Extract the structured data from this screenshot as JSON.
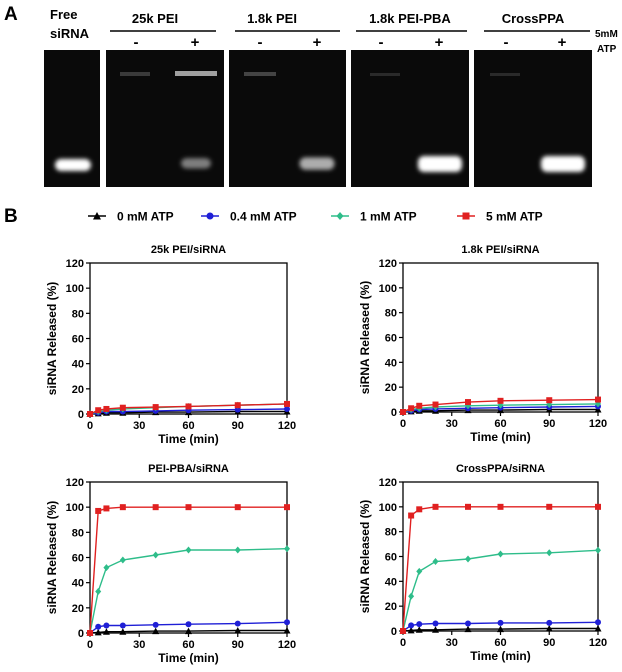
{
  "panel_a": {
    "letter": "A",
    "free_label_line1": "Free",
    "free_label_line2": "siRNA",
    "groups": [
      {
        "name": "25k PEI",
        "minus": "-",
        "plus": "+",
        "minus_band": 0.0,
        "plus_band": 0.3
      },
      {
        "name": "1.8k PEI",
        "minus": "-",
        "plus": "+",
        "minus_band": 0.0,
        "plus_band": 0.55
      },
      {
        "name": "1.8k PEI-PBA",
        "minus": "-",
        "plus": "+",
        "minus_band": 0.0,
        "plus_band": 1.0
      },
      {
        "name": "CrossPPA",
        "minus": "-",
        "plus": "+",
        "minus_band": 0.0,
        "plus_band": 1.0
      }
    ],
    "atp_label_line1": "5mM",
    "atp_label_line2": "ATP",
    "colors": {
      "gel": "#0a0a0a",
      "band": "#ffffff"
    }
  },
  "panel_b": {
    "letter": "B",
    "legend": [
      {
        "label": "0 mM ATP",
        "color": "#000000",
        "marker": "triangle"
      },
      {
        "label": "0.4 mM ATP",
        "color": "#1f1fd6",
        "marker": "circle"
      },
      {
        "label": "1 mM ATP",
        "color": "#2ebd8a",
        "marker": "diamond"
      },
      {
        "label": "5 mM ATP",
        "color": "#e02020",
        "marker": "square"
      }
    ]
  },
  "chart_data": [
    {
      "type": "line",
      "title": "25k PEI/siRNA",
      "xlabel": "Time (min)",
      "ylabel": "siRNA Released (%)",
      "xlim": [
        0,
        120
      ],
      "ylim": [
        0,
        120
      ],
      "xticks": [
        0,
        30,
        60,
        90,
        120
      ],
      "yticks": [
        0,
        20,
        40,
        60,
        80,
        100,
        120
      ],
      "x": [
        0,
        5,
        10,
        20,
        40,
        60,
        90,
        120
      ],
      "series": [
        {
          "name": "0 mM ATP",
          "values": [
            0,
            0.5,
            1,
            1,
            1.5,
            1.5,
            2,
            2
          ]
        },
        {
          "name": "0.4 mM ATP",
          "values": [
            0,
            1,
            2,
            2,
            2.5,
            3,
            3.5,
            4
          ]
        },
        {
          "name": "1 mM ATP",
          "values": [
            0,
            2,
            3,
            4,
            5,
            6,
            7,
            8
          ]
        },
        {
          "name": "5 mM ATP",
          "values": [
            0,
            3,
            4,
            5,
            5.5,
            6,
            7,
            8
          ]
        }
      ]
    },
    {
      "type": "line",
      "title": "1.8k PEI/siRNA",
      "xlabel": "Time (min)",
      "ylabel": "siRNA Released (%)",
      "xlim": [
        0,
        120
      ],
      "ylim": [
        0,
        120
      ],
      "xticks": [
        0,
        30,
        60,
        90,
        120
      ],
      "yticks": [
        0,
        20,
        40,
        60,
        80,
        100,
        120
      ],
      "x": [
        0,
        5,
        10,
        20,
        40,
        60,
        90,
        120
      ],
      "series": [
        {
          "name": "0 mM ATP",
          "values": [
            0,
            0.5,
            1,
            1,
            1.5,
            1.5,
            2,
            2
          ]
        },
        {
          "name": "0.4 mM ATP",
          "values": [
            0,
            1,
            2,
            2.5,
            3,
            3.5,
            4,
            4.5
          ]
        },
        {
          "name": "1 mM ATP",
          "values": [
            0,
            2,
            3,
            4,
            5,
            5.5,
            6,
            6.5
          ]
        },
        {
          "name": "5 mM ATP",
          "values": [
            0,
            3,
            5,
            6,
            8,
            9,
            9.5,
            10
          ]
        }
      ]
    },
    {
      "type": "line",
      "title": "PEI-PBA/siRNA",
      "xlabel": "Time (min)",
      "ylabel": "siRNA Released (%)",
      "xlim": [
        0,
        120
      ],
      "ylim": [
        0,
        120
      ],
      "xticks": [
        0,
        30,
        60,
        90,
        120
      ],
      "yticks": [
        0,
        20,
        40,
        60,
        80,
        100,
        120
      ],
      "x": [
        0,
        5,
        10,
        20,
        40,
        60,
        90,
        120
      ],
      "series": [
        {
          "name": "0 mM ATP",
          "values": [
            0,
            0.5,
            1,
            1,
            1.5,
            1.5,
            2,
            2
          ]
        },
        {
          "name": "0.4 mM ATP",
          "values": [
            0,
            5,
            6,
            6,
            6.5,
            7,
            7.5,
            8.5
          ]
        },
        {
          "name": "1 mM ATP",
          "values": [
            0,
            33,
            52,
            58,
            62,
            66,
            66,
            67
          ]
        },
        {
          "name": "5 mM ATP",
          "values": [
            0,
            97,
            99,
            100,
            100,
            100,
            100,
            100
          ]
        }
      ]
    },
    {
      "type": "line",
      "title": "CrossPPA/siRNA",
      "xlabel": "Time (min)",
      "ylabel": "siRNA Released (%)",
      "xlim": [
        0,
        120
      ],
      "ylim": [
        0,
        120
      ],
      "xticks": [
        0,
        30,
        60,
        90,
        120
      ],
      "yticks": [
        0,
        20,
        40,
        60,
        80,
        100,
        120
      ],
      "x": [
        0,
        5,
        10,
        20,
        40,
        60,
        90,
        120
      ],
      "series": [
        {
          "name": "0 mM ATP",
          "values": [
            0,
            0.5,
            1,
            1,
            1.5,
            1.5,
            2,
            2
          ]
        },
        {
          "name": "0.4 mM ATP",
          "values": [
            0,
            4.5,
            5.5,
            6,
            6,
            6.5,
            6.5,
            7
          ]
        },
        {
          "name": "1 mM ATP",
          "values": [
            0,
            28,
            48,
            56,
            58,
            62,
            63,
            65
          ]
        },
        {
          "name": "5 mM ATP",
          "values": [
            0,
            93,
            98,
            100,
            100,
            100,
            100,
            100
          ]
        }
      ]
    }
  ]
}
